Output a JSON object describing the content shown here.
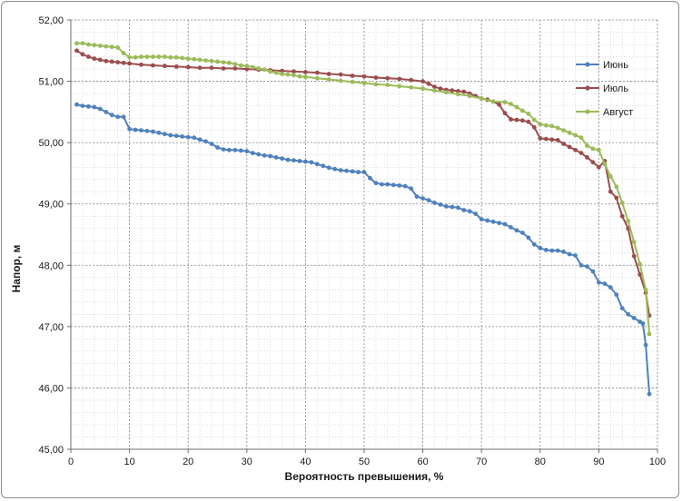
{
  "chart_data": {
    "type": "line",
    "xlabel": "Вероятность превышения, %",
    "ylabel": "Напор, м",
    "xlim": [
      0,
      100
    ],
    "ylim": [
      45,
      52
    ],
    "x_ticks": [
      0,
      10,
      20,
      30,
      40,
      50,
      60,
      70,
      80,
      90,
      100
    ],
    "y_ticks": [
      "45,00",
      "46,00",
      "47,00",
      "48,00",
      "49,00",
      "50,00",
      "51,00",
      "52,00"
    ],
    "grid": "major and minor, dashed",
    "legend_position": "right",
    "series": [
      {
        "name": "Июнь",
        "color": "#4f81bd",
        "points": [
          [
            1,
            50.62
          ],
          [
            2,
            50.6
          ],
          [
            3,
            50.59
          ],
          [
            4,
            50.58
          ],
          [
            5,
            50.55
          ],
          [
            6,
            50.5
          ],
          [
            7,
            50.45
          ],
          [
            8,
            50.42
          ],
          [
            9,
            50.42
          ],
          [
            10,
            50.22
          ],
          [
            11,
            50.21
          ],
          [
            12,
            50.2
          ],
          [
            13,
            50.19
          ],
          [
            14,
            50.18
          ],
          [
            15,
            50.16
          ],
          [
            16,
            50.14
          ],
          [
            17,
            50.12
          ],
          [
            18,
            50.11
          ],
          [
            19,
            50.1
          ],
          [
            20,
            50.09
          ],
          [
            21,
            50.08
          ],
          [
            22,
            50.05
          ],
          [
            23,
            50.02
          ],
          [
            24,
            49.98
          ],
          [
            25,
            49.92
          ],
          [
            26,
            49.89
          ],
          [
            27,
            49.88
          ],
          [
            28,
            49.88
          ],
          [
            29,
            49.87
          ],
          [
            30,
            49.86
          ],
          [
            31,
            49.83
          ],
          [
            32,
            49.81
          ],
          [
            33,
            49.79
          ],
          [
            34,
            49.78
          ],
          [
            35,
            49.76
          ],
          [
            36,
            49.74
          ],
          [
            37,
            49.72
          ],
          [
            38,
            49.71
          ],
          [
            39,
            49.7
          ],
          [
            40,
            49.69
          ],
          [
            41,
            49.68
          ],
          [
            42,
            49.65
          ],
          [
            43,
            49.62
          ],
          [
            44,
            49.59
          ],
          [
            45,
            49.57
          ],
          [
            46,
            49.55
          ],
          [
            47,
            49.54
          ],
          [
            48,
            49.53
          ],
          [
            49,
            49.52
          ],
          [
            50,
            49.52
          ],
          [
            51,
            49.42
          ],
          [
            52,
            49.34
          ],
          [
            53,
            49.32
          ],
          [
            54,
            49.32
          ],
          [
            55,
            49.31
          ],
          [
            56,
            49.3
          ],
          [
            57,
            49.29
          ],
          [
            58,
            49.25
          ],
          [
            59,
            49.12
          ],
          [
            60,
            49.09
          ],
          [
            61,
            49.06
          ],
          [
            62,
            49.02
          ],
          [
            63,
            48.99
          ],
          [
            64,
            48.96
          ],
          [
            65,
            48.95
          ],
          [
            66,
            48.94
          ],
          [
            67,
            48.9
          ],
          [
            68,
            48.88
          ],
          [
            69,
            48.84
          ],
          [
            70,
            48.75
          ],
          [
            71,
            48.73
          ],
          [
            72,
            48.71
          ],
          [
            73,
            48.69
          ],
          [
            74,
            48.67
          ],
          [
            75,
            48.62
          ],
          [
            76,
            48.57
          ],
          [
            77,
            48.53
          ],
          [
            78,
            48.45
          ],
          [
            79,
            48.34
          ],
          [
            80,
            48.28
          ],
          [
            81,
            48.25
          ],
          [
            82,
            48.24
          ],
          [
            83,
            48.24
          ],
          [
            84,
            48.22
          ],
          [
            85,
            48.18
          ],
          [
            86,
            48.16
          ],
          [
            87,
            48.0
          ],
          [
            88,
            47.98
          ],
          [
            89,
            47.9
          ],
          [
            90,
            47.72
          ],
          [
            91,
            47.7
          ],
          [
            92,
            47.64
          ],
          [
            93,
            47.52
          ],
          [
            94,
            47.3
          ],
          [
            95,
            47.2
          ],
          [
            96,
            47.14
          ],
          [
            97,
            47.08
          ],
          [
            97.5,
            47.05
          ],
          [
            98,
            46.7
          ],
          [
            98.6,
            45.9
          ]
        ]
      },
      {
        "name": "Июль",
        "color": "#9b4d4d",
        "points": [
          [
            1,
            51.5
          ],
          [
            2,
            51.44
          ],
          [
            3,
            51.4
          ],
          [
            4,
            51.37
          ],
          [
            5,
            51.35
          ],
          [
            6,
            51.33
          ],
          [
            7,
            51.32
          ],
          [
            8,
            51.31
          ],
          [
            9,
            51.3
          ],
          [
            10,
            51.29
          ],
          [
            12,
            51.27
          ],
          [
            14,
            51.26
          ],
          [
            16,
            51.25
          ],
          [
            18,
            51.24
          ],
          [
            20,
            51.23
          ],
          [
            22,
            51.22
          ],
          [
            24,
            51.22
          ],
          [
            26,
            51.21
          ],
          [
            28,
            51.21
          ],
          [
            30,
            51.2
          ],
          [
            32,
            51.19
          ],
          [
            34,
            51.18
          ],
          [
            36,
            51.17
          ],
          [
            38,
            51.16
          ],
          [
            40,
            51.15
          ],
          [
            42,
            51.14
          ],
          [
            44,
            51.12
          ],
          [
            46,
            51.11
          ],
          [
            48,
            51.09
          ],
          [
            50,
            51.08
          ],
          [
            52,
            51.06
          ],
          [
            54,
            51.05
          ],
          [
            56,
            51.04
          ],
          [
            58,
            51.02
          ],
          [
            60,
            51.0
          ],
          [
            61,
            50.96
          ],
          [
            62,
            50.91
          ],
          [
            63,
            50.88
          ],
          [
            64,
            50.86
          ],
          [
            65,
            50.85
          ],
          [
            66,
            50.84
          ],
          [
            67,
            50.83
          ],
          [
            68,
            50.8
          ],
          [
            69,
            50.76
          ],
          [
            70,
            50.72
          ],
          [
            71,
            50.7
          ],
          [
            72,
            50.67
          ],
          [
            73,
            50.62
          ],
          [
            74,
            50.48
          ],
          [
            75,
            50.38
          ],
          [
            76,
            50.37
          ],
          [
            77,
            50.36
          ],
          [
            78,
            50.34
          ],
          [
            79,
            50.25
          ],
          [
            80,
            50.07
          ],
          [
            81,
            50.06
          ],
          [
            82,
            50.05
          ],
          [
            83,
            50.04
          ],
          [
            84,
            49.98
          ],
          [
            85,
            49.93
          ],
          [
            86,
            49.88
          ],
          [
            87,
            49.83
          ],
          [
            88,
            49.76
          ],
          [
            89,
            49.68
          ],
          [
            90,
            49.6
          ],
          [
            91,
            49.7
          ],
          [
            92,
            49.2
          ],
          [
            93,
            49.1
          ],
          [
            94,
            48.8
          ],
          [
            95,
            48.6
          ],
          [
            96,
            48.15
          ],
          [
            97,
            47.85
          ],
          [
            98,
            47.55
          ],
          [
            98.6,
            47.18
          ]
        ]
      },
      {
        "name": "Август",
        "color": "#9bbb59",
        "points": [
          [
            1,
            51.62
          ],
          [
            2,
            51.62
          ],
          [
            3,
            51.6
          ],
          [
            4,
            51.59
          ],
          [
            5,
            51.58
          ],
          [
            6,
            51.57
          ],
          [
            7,
            51.56
          ],
          [
            8,
            51.55
          ],
          [
            9,
            51.46
          ],
          [
            10,
            51.39
          ],
          [
            11,
            51.39
          ],
          [
            12,
            51.4
          ],
          [
            13,
            51.4
          ],
          [
            14,
            51.4
          ],
          [
            15,
            51.4
          ],
          [
            16,
            51.4
          ],
          [
            17,
            51.39
          ],
          [
            18,
            51.39
          ],
          [
            19,
            51.38
          ],
          [
            20,
            51.37
          ],
          [
            21,
            51.36
          ],
          [
            22,
            51.35
          ],
          [
            23,
            51.34
          ],
          [
            24,
            51.33
          ],
          [
            25,
            51.32
          ],
          [
            26,
            51.31
          ],
          [
            27,
            51.3
          ],
          [
            28,
            51.28
          ],
          [
            29,
            51.26
          ],
          [
            30,
            51.25
          ],
          [
            31,
            51.23
          ],
          [
            32,
            51.21
          ],
          [
            33,
            51.19
          ],
          [
            34,
            51.16
          ],
          [
            35,
            51.14
          ],
          [
            36,
            51.12
          ],
          [
            37,
            51.11
          ],
          [
            38,
            51.1
          ],
          [
            39,
            51.08
          ],
          [
            40,
            51.07
          ],
          [
            42,
            51.05
          ],
          [
            44,
            51.03
          ],
          [
            46,
            51.01
          ],
          [
            48,
            50.99
          ],
          [
            50,
            50.97
          ],
          [
            52,
            50.95
          ],
          [
            54,
            50.94
          ],
          [
            56,
            50.92
          ],
          [
            58,
            50.9
          ],
          [
            60,
            50.88
          ],
          [
            62,
            50.85
          ],
          [
            64,
            50.82
          ],
          [
            66,
            50.79
          ],
          [
            68,
            50.76
          ],
          [
            70,
            50.72
          ],
          [
            72,
            50.67
          ],
          [
            74,
            50.66
          ],
          [
            75,
            50.63
          ],
          [
            76,
            50.58
          ],
          [
            77,
            50.52
          ],
          [
            78,
            50.47
          ],
          [
            79,
            50.37
          ],
          [
            80,
            50.3
          ],
          [
            81,
            50.28
          ],
          [
            82,
            50.27
          ],
          [
            83,
            50.24
          ],
          [
            84,
            50.2
          ],
          [
            85,
            50.16
          ],
          [
            86,
            50.12
          ],
          [
            87,
            50.08
          ],
          [
            88,
            49.95
          ],
          [
            89,
            49.9
          ],
          [
            90,
            49.88
          ],
          [
            91,
            49.65
          ],
          [
            92,
            49.45
          ],
          [
            93,
            49.28
          ],
          [
            94,
            49.02
          ],
          [
            95,
            48.72
          ],
          [
            96,
            48.38
          ],
          [
            97,
            48.02
          ],
          [
            98,
            47.6
          ],
          [
            98.6,
            46.88
          ]
        ]
      }
    ]
  }
}
